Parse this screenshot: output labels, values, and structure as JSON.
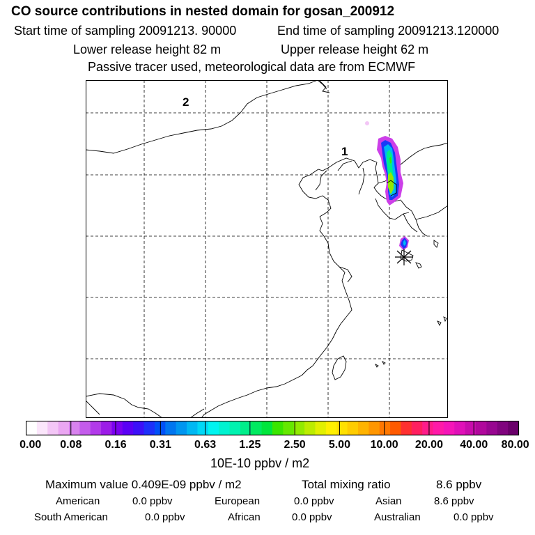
{
  "header": {
    "title": "CO  source contributions in nested domain for gosan_200912",
    "start_time": "Start time of sampling 20091213. 90000",
    "end_time": "End time of sampling 20091213.120000",
    "lower_height": "Lower release height   82 m",
    "upper_height": "Upper release height   62 m",
    "tracer_note": "Passive tracer used, meteorological data are from ECMWF"
  },
  "map": {
    "region_labels": [
      "2",
      "1"
    ],
    "receptor_marker": "gosan-receptor-star"
  },
  "colorbar": {
    "colors": [
      "#ffffff",
      "#fbe6fb",
      "#f3c6f6",
      "#eaa6f2",
      "#d882ee",
      "#c45cec",
      "#b23aea",
      "#9c1ce8",
      "#7a00f0",
      "#5a00f5",
      "#3c10f8",
      "#1d30fa",
      "#0050f8",
      "#0076f0",
      "#0096f0",
      "#00b8f3",
      "#00d8f6",
      "#00f4f0",
      "#00f2d0",
      "#00f2b0",
      "#00ee8a",
      "#00ea60",
      "#00e63c",
      "#3ae600",
      "#66e800",
      "#92ea00",
      "#bcec00",
      "#e2f000",
      "#fff000",
      "#ffe000",
      "#ffcc00",
      "#ffb300",
      "#ff9600",
      "#ff7800",
      "#ff5a00",
      "#ff3030",
      "#ff1f5f",
      "#ff1c8a",
      "#ff1aa8",
      "#f515b8",
      "#e010b8",
      "#c80cac",
      "#b0089c",
      "#980690",
      "#80047e",
      "#6a006a"
    ],
    "ticks": [
      "0.00",
      "0.08",
      "0.16",
      "0.31",
      "0.63",
      "1.25",
      "2.50",
      "5.00",
      "10.00",
      "20.00",
      "40.00",
      "80.00"
    ],
    "unit": "10E-10 ppbv / m2"
  },
  "summary": {
    "max_label": "Maximum value  0.409E-09 ppbv / m2",
    "total_label": "Total mixing ratio",
    "total_value": "8.6 ppbv"
  },
  "regions": [
    {
      "name": "American",
      "value": "0.0 ppbv"
    },
    {
      "name": "European",
      "value": "0.0 ppbv"
    },
    {
      "name": "Asian",
      "value": "8.6 ppbv"
    },
    {
      "name": "South American",
      "value": "0.0 ppbv"
    },
    {
      "name": "African",
      "value": "0.0 ppbv"
    },
    {
      "name": "Australian",
      "value": "0.0 ppbv"
    }
  ]
}
